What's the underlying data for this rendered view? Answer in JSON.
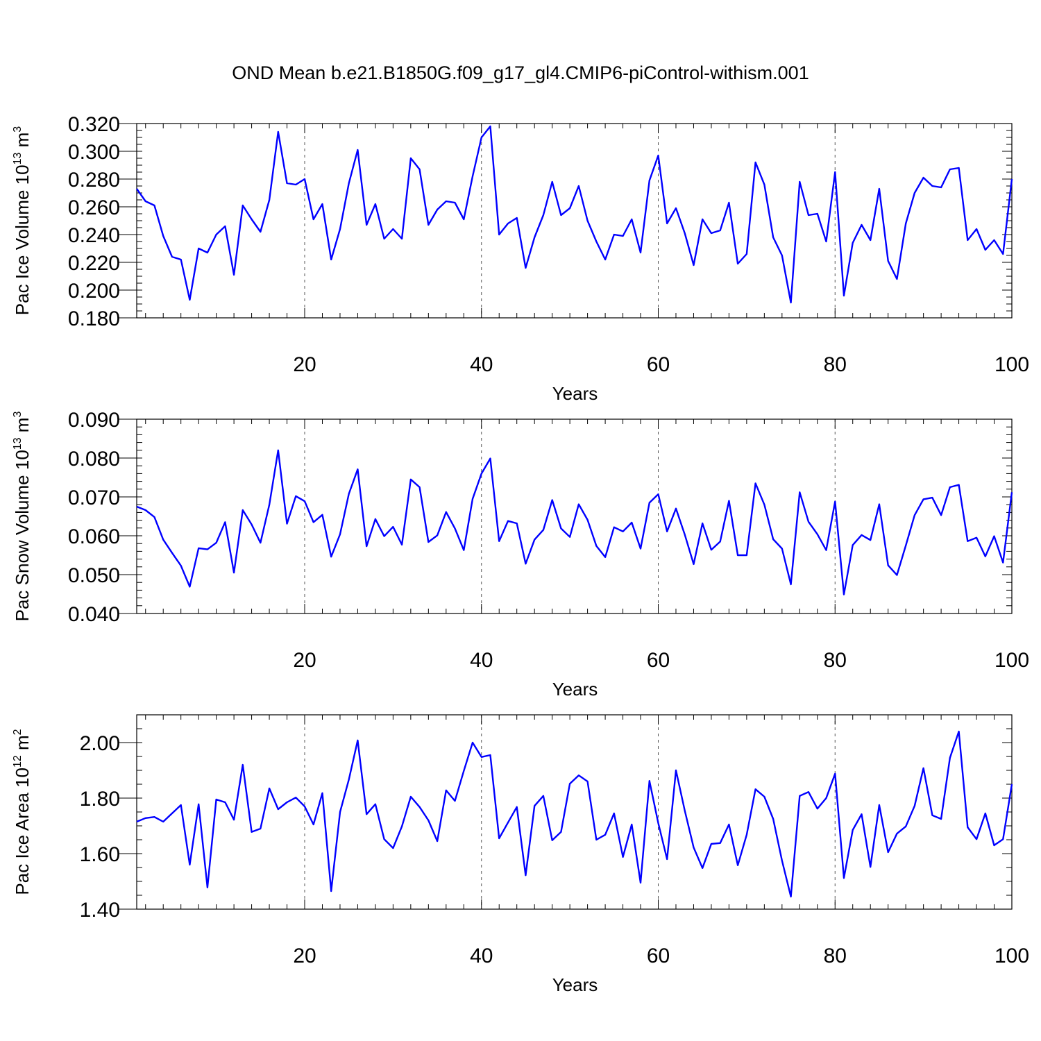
{
  "title": "OND Mean b.e21.B1850G.f09_g17_gl4.CMIP6-piControl-withism.001",
  "chart_data": [
    {
      "type": "line",
      "xlabel": "Years",
      "ylabel": {
        "text": "Pac Ice Volume 10",
        "sup1": "13",
        "mid": " m",
        "sup2": "3"
      },
      "xlim": [
        1,
        100
      ],
      "ylim": [
        0.18,
        0.32
      ],
      "xticks": [
        20,
        40,
        60,
        80,
        100
      ],
      "yticks": [
        "0.180",
        "0.200",
        "0.220",
        "0.240",
        "0.260",
        "0.280",
        "0.300",
        "0.320"
      ],
      "yminor": 0.005,
      "grid": "vertical dashed at major x ticks",
      "color": "#0000ff",
      "values": [
        0.273,
        0.264,
        0.261,
        0.239,
        0.224,
        0.222,
        0.193,
        0.23,
        0.227,
        0.24,
        0.246,
        0.211,
        0.261,
        0.251,
        0.242,
        0.265,
        0.314,
        0.277,
        0.276,
        0.28,
        0.251,
        0.262,
        0.222,
        0.244,
        0.277,
        0.301,
        0.247,
        0.262,
        0.237,
        0.244,
        0.237,
        0.295,
        0.287,
        0.247,
        0.258,
        0.264,
        0.263,
        0.251,
        0.282,
        0.31,
        0.318,
        0.24,
        0.248,
        0.252,
        0.216,
        0.238,
        0.254,
        0.278,
        0.254,
        0.259,
        0.275,
        0.25,
        0.235,
        0.222,
        0.24,
        0.239,
        0.251,
        0.227,
        0.279,
        0.297,
        0.248,
        0.259,
        0.241,
        0.218,
        0.251,
        0.241,
        0.243,
        0.263,
        0.219,
        0.226,
        0.292,
        0.276,
        0.238,
        0.225,
        0.191,
        0.278,
        0.254,
        0.255,
        0.235,
        0.285,
        0.196,
        0.234,
        0.247,
        0.236,
        0.273,
        0.221,
        0.208,
        0.248,
        0.27,
        0.281,
        0.275,
        0.274,
        0.287,
        0.288,
        0.236,
        0.244,
        0.229,
        0.236,
        0.226,
        0.28
      ]
    },
    {
      "type": "line",
      "xlabel": "Years",
      "ylabel": {
        "text": "Pac Snow Volume 10",
        "sup1": "13",
        "mid": " m",
        "sup2": "3"
      },
      "xlim": [
        1,
        100
      ],
      "ylim": [
        0.04,
        0.09
      ],
      "xticks": [
        20,
        40,
        60,
        80,
        100
      ],
      "yticks": [
        "0.040",
        "0.050",
        "0.060",
        "0.070",
        "0.080",
        "0.090"
      ],
      "yminor": 0.002,
      "grid": "vertical dashed at major x ticks",
      "color": "#0000ff",
      "values": [
        0.0675,
        0.0666,
        0.0648,
        0.059,
        0.0556,
        0.0523,
        0.0469,
        0.0568,
        0.0565,
        0.0582,
        0.0635,
        0.0505,
        0.0666,
        0.0629,
        0.0582,
        0.068,
        0.082,
        0.0631,
        0.0702,
        0.0689,
        0.0635,
        0.0654,
        0.0546,
        0.0604,
        0.0708,
        0.0771,
        0.0573,
        0.0643,
        0.0599,
        0.0623,
        0.0577,
        0.0745,
        0.0725,
        0.0584,
        0.0601,
        0.0661,
        0.0619,
        0.0563,
        0.0695,
        0.076,
        0.0799,
        0.0586,
        0.0638,
        0.0632,
        0.0528,
        0.059,
        0.0615,
        0.0692,
        0.0619,
        0.0597,
        0.0681,
        0.0641,
        0.0574,
        0.0545,
        0.0622,
        0.0611,
        0.0634,
        0.0567,
        0.0685,
        0.0707,
        0.0611,
        0.067,
        0.0603,
        0.0527,
        0.0632,
        0.0564,
        0.0585,
        0.069,
        0.055,
        0.055,
        0.0735,
        0.068,
        0.0591,
        0.0567,
        0.0475,
        0.0712,
        0.0636,
        0.0604,
        0.0563,
        0.0688,
        0.0449,
        0.0576,
        0.0602,
        0.0589,
        0.0681,
        0.0524,
        0.0499,
        0.0575,
        0.0653,
        0.0694,
        0.0698,
        0.0653,
        0.0725,
        0.0731,
        0.0586,
        0.0595,
        0.0547,
        0.0599,
        0.0531,
        0.0712
      ]
    },
    {
      "type": "line",
      "xlabel": "Years",
      "ylabel": {
        "text": "Pac Ice Area 10",
        "sup1": "12",
        "mid": " m",
        "sup2": "2"
      },
      "xlim": [
        1,
        100
      ],
      "ylim": [
        1.4,
        2.1
      ],
      "xticks": [
        20,
        40,
        60,
        80,
        100
      ],
      "yticks": [
        "1.40",
        "1.60",
        "1.80",
        "2.00"
      ],
      "yminor": 0.05,
      "grid": "vertical dashed at major x ticks",
      "color": "#0000ff",
      "values": [
        1.715,
        1.728,
        1.732,
        1.715,
        1.745,
        1.775,
        1.56,
        1.778,
        1.478,
        1.795,
        1.785,
        1.722,
        1.92,
        1.678,
        1.69,
        1.835,
        1.76,
        1.785,
        1.802,
        1.77,
        1.705,
        1.818,
        1.465,
        1.75,
        1.867,
        2.008,
        1.742,
        1.778,
        1.652,
        1.62,
        1.698,
        1.805,
        1.768,
        1.72,
        1.645,
        1.828,
        1.79,
        1.898,
        2.0,
        1.948,
        1.955,
        1.655,
        1.712,
        1.768,
        1.522,
        1.772,
        1.808,
        1.648,
        1.678,
        1.852,
        1.882,
        1.86,
        1.65,
        1.668,
        1.745,
        1.588,
        1.705,
        1.495,
        1.862,
        1.71,
        1.58,
        1.9,
        1.755,
        1.622,
        1.548,
        1.635,
        1.638,
        1.705,
        1.558,
        1.668,
        1.832,
        1.805,
        1.725,
        1.575,
        1.445,
        1.808,
        1.822,
        1.762,
        1.8,
        1.888,
        1.512,
        1.685,
        1.742,
        1.552,
        1.775,
        1.605,
        1.672,
        1.698,
        1.772,
        1.908,
        1.738,
        1.725,
        1.945,
        2.04,
        1.695,
        1.652,
        1.745,
        1.63,
        1.652,
        1.85
      ]
    }
  ]
}
